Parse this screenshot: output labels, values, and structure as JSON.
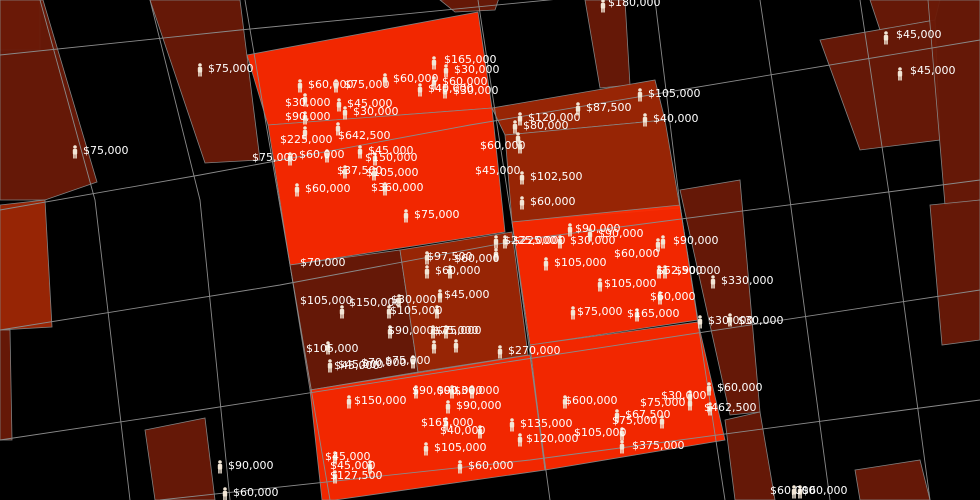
{
  "colors": {
    "background": "#000000",
    "block_outline": "#8a8a8a",
    "marker": "#f2e6d6",
    "label": "#ffffff",
    "level_low": "#6b1a08",
    "level_mid": "#a02806",
    "level_high": "#ff2a00"
  },
  "marker_icon": "person-icon",
  "labels": [
    "$180,000",
    "$45,000",
    "$45,000",
    "$75,000",
    "$75,000",
    "$165,000",
    "$30,000",
    "$60,000",
    "$30,000",
    "$60,000",
    "$75,000",
    "$60,000",
    "$40,000",
    "$30,000",
    "$45,000",
    "$90,000",
    "$30,000",
    "$225,000",
    "$642,500",
    "$120,000",
    "$87,500",
    "$105,000",
    "$40,000",
    "$80,000",
    "$60,000",
    "$45,000",
    "$75,000",
    "$60,000",
    "$45,000",
    "$150,000",
    "$37,500",
    "$105,000",
    "$360,000",
    "$60,000",
    "$102,500",
    "$60,000",
    "$75,000",
    "$90,000",
    "$90,000",
    "$60,000",
    "$60,000",
    "$30,000",
    "$225,000",
    "$90,000",
    "$225,000",
    "$70,000",
    "$105,000",
    "$90,000",
    "$97,500",
    "$60,000",
    "$105,000",
    "$52,500",
    "$330,000",
    "$45,000",
    "$75,000",
    "$30,000",
    "$150,000",
    "$60,000",
    "$105,000",
    "$30,000",
    "$30,000",
    "$90,000",
    "$75,000",
    "$165,000",
    "$105,000",
    "$70,000",
    "$45,000",
    "$105,000",
    "$45,000",
    "$75,000",
    "$75,000",
    "$270,000",
    "$90,000",
    "$30,000",
    "$150,000",
    "$90,000",
    "$600,000",
    "$60,000",
    "$165,000",
    "$90,000",
    "$30,000",
    "$75,000",
    "$67,500",
    "$462,500",
    "$135,000",
    "$40,000",
    "$120,000",
    "$105,000",
    "$75,000",
    "$105,000",
    "$45,000",
    "$60,000",
    "$375,000",
    "$127,500",
    "$45,000",
    "$60,000",
    "$60,000",
    "$90,000",
    "$60,000"
  ]
}
